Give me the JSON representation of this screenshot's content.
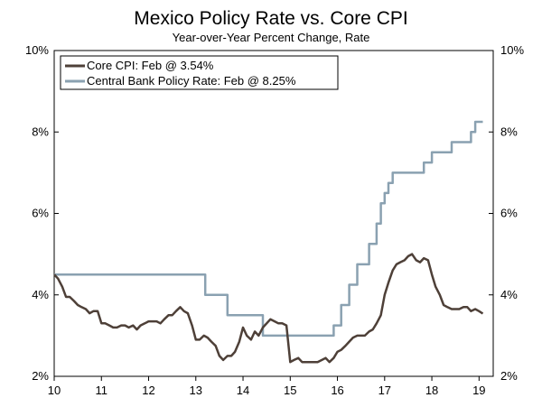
{
  "chart_data": {
    "type": "line",
    "title": "Mexico Policy Rate vs. Core CPI",
    "subtitle": "Year-over-Year Percent Change, Rate",
    "xlabel": "",
    "ylabel": "",
    "xlim": [
      2010.0,
      2019.3
    ],
    "ylim": [
      2,
      10
    ],
    "x_ticks": [
      10,
      11,
      12,
      13,
      14,
      15,
      16,
      17,
      18,
      19
    ],
    "y_ticks_left": [
      "2%",
      "4%",
      "6%",
      "8%",
      "10%"
    ],
    "y_ticks_right": [
      "2%",
      "4%",
      "6%",
      "8%",
      "10%"
    ],
    "y_tick_values": [
      2,
      4,
      6,
      8,
      10
    ],
    "legend_position": "top-left",
    "colors": {
      "core_cpi": "#4e4038",
      "policy_rate": "#8aa1b1"
    },
    "series": [
      {
        "key": "core_cpi",
        "name": "Core CPI: Feb @ 3.54%",
        "x": [
          2010.0,
          2010.08,
          2010.17,
          2010.25,
          2010.33,
          2010.42,
          2010.5,
          2010.58,
          2010.67,
          2010.75,
          2010.83,
          2010.92,
          2011.0,
          2011.08,
          2011.17,
          2011.25,
          2011.33,
          2011.42,
          2011.5,
          2011.58,
          2011.67,
          2011.75,
          2011.83,
          2011.92,
          2012.0,
          2012.08,
          2012.17,
          2012.25,
          2012.33,
          2012.42,
          2012.5,
          2012.58,
          2012.67,
          2012.75,
          2012.83,
          2012.92,
          2013.0,
          2013.08,
          2013.17,
          2013.25,
          2013.33,
          2013.42,
          2013.5,
          2013.58,
          2013.67,
          2013.75,
          2013.83,
          2013.92,
          2014.0,
          2014.08,
          2014.17,
          2014.25,
          2014.33,
          2014.42,
          2014.5,
          2014.58,
          2014.67,
          2014.75,
          2014.83,
          2014.92,
          2015.0,
          2015.08,
          2015.17,
          2015.25,
          2015.33,
          2015.42,
          2015.5,
          2015.58,
          2015.67,
          2015.75,
          2015.83,
          2015.92,
          2016.0,
          2016.08,
          2016.17,
          2016.25,
          2016.33,
          2016.42,
          2016.5,
          2016.58,
          2016.67,
          2016.75,
          2016.83,
          2016.92,
          2017.0,
          2017.08,
          2017.17,
          2017.25,
          2017.33,
          2017.42,
          2017.5,
          2017.58,
          2017.67,
          2017.75,
          2017.83,
          2017.92,
          2018.0,
          2018.08,
          2018.17,
          2018.25,
          2018.33,
          2018.42,
          2018.5,
          2018.58,
          2018.67,
          2018.75,
          2018.83,
          2018.92,
          2019.0,
          2019.08
        ],
        "values": [
          4.5,
          4.4,
          4.2,
          3.95,
          3.95,
          3.85,
          3.75,
          3.7,
          3.65,
          3.55,
          3.6,
          3.6,
          3.3,
          3.3,
          3.25,
          3.2,
          3.2,
          3.25,
          3.25,
          3.2,
          3.25,
          3.15,
          3.25,
          3.3,
          3.35,
          3.35,
          3.35,
          3.3,
          3.4,
          3.5,
          3.5,
          3.6,
          3.7,
          3.6,
          3.55,
          3.25,
          2.9,
          2.9,
          3.0,
          2.95,
          2.85,
          2.75,
          2.5,
          2.4,
          2.5,
          2.5,
          2.6,
          2.85,
          3.2,
          3.0,
          2.9,
          3.1,
          3.0,
          3.2,
          3.3,
          3.4,
          3.35,
          3.3,
          3.3,
          3.25,
          2.35,
          2.4,
          2.45,
          2.35,
          2.35,
          2.35,
          2.35,
          2.35,
          2.4,
          2.45,
          2.35,
          2.45,
          2.6,
          2.65,
          2.75,
          2.85,
          2.95,
          3.0,
          3.0,
          3.0,
          3.1,
          3.15,
          3.3,
          3.5,
          4.0,
          4.3,
          4.6,
          4.75,
          4.8,
          4.85,
          4.95,
          5.0,
          4.85,
          4.8,
          4.9,
          4.85,
          4.5,
          4.2,
          4.0,
          3.75,
          3.7,
          3.65,
          3.65,
          3.65,
          3.7,
          3.7,
          3.6,
          3.65,
          3.6,
          3.54
        ]
      },
      {
        "key": "policy_rate",
        "name": "Central Bank Policy Rate: Feb @ 8.25%",
        "x": [
          2010.0,
          2013.2,
          2013.2,
          2013.67,
          2013.67,
          2014.42,
          2014.42,
          2015.92,
          2015.92,
          2016.08,
          2016.08,
          2016.25,
          2016.25,
          2016.42,
          2016.42,
          2016.67,
          2016.67,
          2016.83,
          2016.83,
          2016.92,
          2016.92,
          2017.0,
          2017.0,
          2017.08,
          2017.08,
          2017.17,
          2017.17,
          2017.25,
          2017.25,
          2017.42,
          2017.42,
          2017.83,
          2017.83,
          2018.0,
          2018.0,
          2018.08,
          2018.08,
          2018.42,
          2018.42,
          2018.83,
          2018.83,
          2018.92,
          2018.92,
          2019.08
        ],
        "values": [
          4.5,
          4.5,
          4.0,
          4.0,
          3.5,
          3.5,
          3.0,
          3.0,
          3.25,
          3.25,
          3.75,
          3.75,
          4.25,
          4.25,
          4.75,
          4.75,
          5.25,
          5.25,
          5.75,
          5.75,
          6.25,
          6.25,
          6.5,
          6.5,
          6.75,
          6.75,
          7.0,
          7.0,
          7.0,
          7.0,
          7.0,
          7.0,
          7.25,
          7.25,
          7.5,
          7.5,
          7.5,
          7.5,
          7.75,
          7.75,
          8.0,
          8.0,
          8.25,
          8.25
        ]
      }
    ]
  }
}
